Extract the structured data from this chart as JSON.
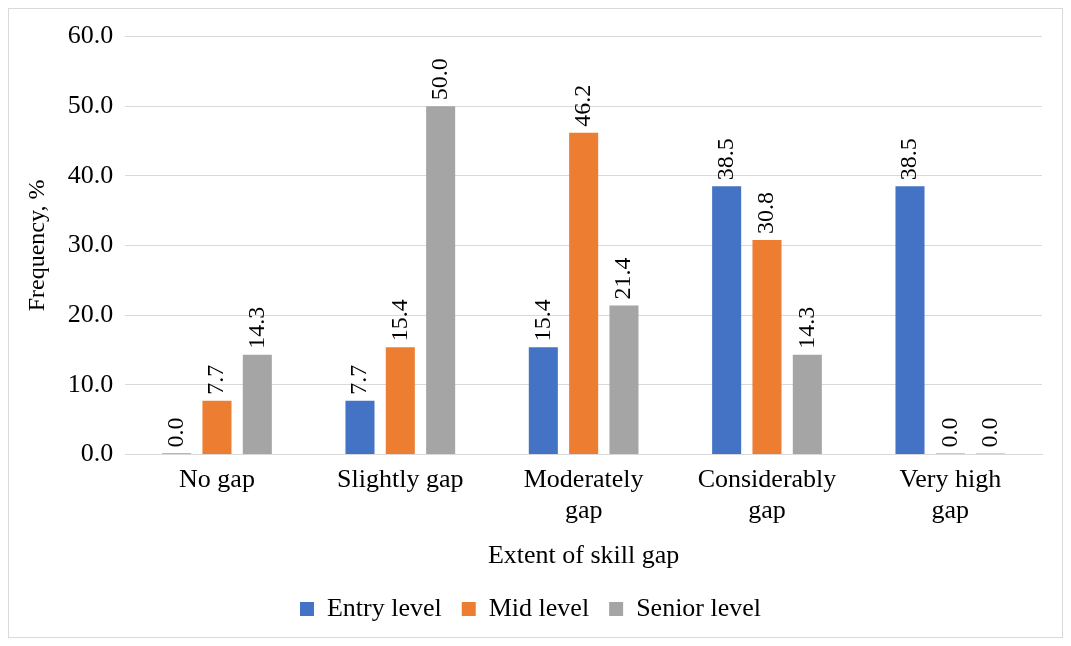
{
  "chart_data": {
    "type": "bar",
    "xlabel": "Extent of skill gap",
    "ylabel": "Frequency, %",
    "categories": [
      "No gap",
      "Slightly gap",
      "Moderately gap",
      "Considerably gap",
      "Very high gap"
    ],
    "series": [
      {
        "name": "Entry level",
        "color": "#4472c4",
        "values": [
          0.0,
          7.7,
          15.4,
          38.5,
          38.5
        ],
        "value_labels": [
          "0.0",
          "7.7",
          "15.4",
          "38.5",
          "38.5"
        ]
      },
      {
        "name": "Mid level",
        "color": "#ed7d31",
        "values": [
          7.7,
          15.4,
          46.2,
          30.8,
          0.0
        ],
        "value_labels": [
          "7.7",
          "15.4",
          "46.2",
          "30.8",
          "0.0"
        ]
      },
      {
        "name": "Senior level",
        "color": "#a5a5a5",
        "values": [
          14.3,
          50.0,
          21.4,
          14.3,
          0.0
        ],
        "value_labels": [
          "14.3",
          "50.0",
          "21.4",
          "14.3",
          "0.0"
        ]
      }
    ],
    "ylim": [
      0,
      60
    ],
    "yticks": [
      {
        "value": 0,
        "label": "0.0"
      },
      {
        "value": 10,
        "label": "10.0"
      },
      {
        "value": 20,
        "label": "20.0"
      },
      {
        "value": 30,
        "label": "30.0"
      },
      {
        "value": 40,
        "label": "40.0"
      },
      {
        "value": 50,
        "label": "50.0"
      },
      {
        "value": 60,
        "label": "60.0"
      }
    ],
    "grid": "y",
    "legend": "bottom"
  }
}
